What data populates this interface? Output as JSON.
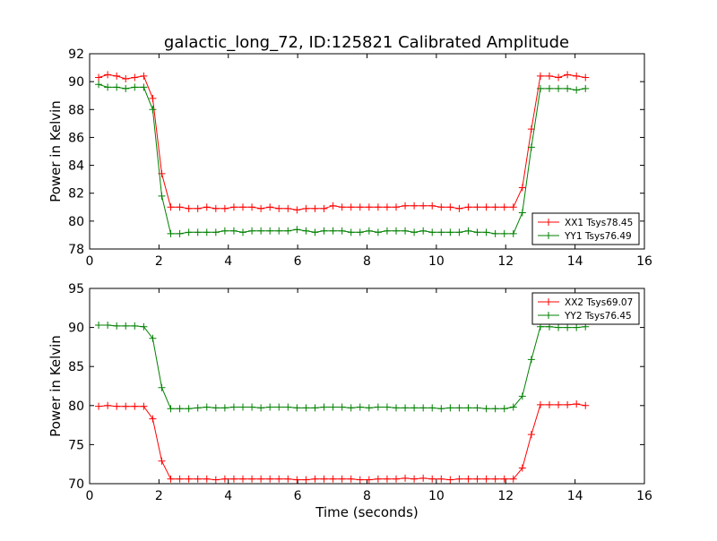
{
  "figure": {
    "title": "galactic_long_72, ID:125821 Calibrated Amplitude",
    "background": "#ffffff"
  },
  "chart_data": [
    {
      "type": "line",
      "title": "galactic_long_72, ID:125821 Calibrated Amplitude",
      "xlabel": "",
      "ylabel": "Power in Kelvin",
      "xlim": [
        0,
        16
      ],
      "ylim": [
        78,
        92
      ],
      "xticks": [
        0,
        2,
        4,
        6,
        8,
        10,
        12,
        14,
        16
      ],
      "yticks": [
        78,
        80,
        82,
        84,
        86,
        88,
        90,
        92
      ],
      "grid": false,
      "legend_position": "lower-right",
      "marker": "+",
      "x": [
        0.26,
        0.52,
        0.78,
        1.04,
        1.3,
        1.56,
        1.82,
        2.08,
        2.34,
        2.6,
        2.86,
        3.12,
        3.38,
        3.64,
        3.9,
        4.16,
        4.42,
        4.68,
        4.94,
        5.2,
        5.46,
        5.72,
        5.98,
        6.24,
        6.5,
        6.76,
        7.02,
        7.28,
        7.54,
        7.8,
        8.06,
        8.32,
        8.58,
        8.84,
        9.1,
        9.36,
        9.62,
        9.88,
        10.14,
        10.4,
        10.66,
        10.92,
        11.18,
        11.44,
        11.7,
        11.96,
        12.22,
        12.48,
        12.74,
        13.0,
        13.26,
        13.52,
        13.78,
        14.04,
        14.3
      ],
      "series": [
        {
          "name": "XX1 Tsys78.45",
          "color": "#ff0000",
          "values": [
            90.3,
            90.5,
            90.4,
            90.2,
            90.3,
            90.4,
            88.8,
            83.4,
            81.0,
            81.0,
            80.9,
            80.9,
            81.0,
            80.9,
            80.9,
            81.0,
            81.0,
            81.0,
            80.9,
            81.0,
            80.9,
            80.9,
            80.8,
            80.9,
            80.9,
            80.9,
            81.1,
            81.0,
            81.0,
            81.0,
            81.0,
            81.0,
            81.0,
            81.0,
            81.1,
            81.1,
            81.1,
            81.1,
            81.0,
            81.0,
            80.9,
            81.0,
            81.0,
            81.0,
            81.0,
            81.0,
            81.0,
            82.4,
            86.6,
            90.4,
            90.4,
            90.3,
            90.5,
            90.4,
            90.3
          ]
        },
        {
          "name": "YY1 Tsys76.49",
          "color": "#008000",
          "values": [
            89.8,
            89.6,
            89.6,
            89.5,
            89.6,
            89.6,
            88.0,
            81.8,
            79.1,
            79.1,
            79.2,
            79.2,
            79.2,
            79.2,
            79.3,
            79.3,
            79.2,
            79.3,
            79.3,
            79.3,
            79.3,
            79.3,
            79.4,
            79.3,
            79.2,
            79.3,
            79.3,
            79.3,
            79.2,
            79.2,
            79.3,
            79.2,
            79.3,
            79.3,
            79.3,
            79.2,
            79.3,
            79.2,
            79.2,
            79.2,
            79.2,
            79.3,
            79.2,
            79.2,
            79.1,
            79.1,
            79.1,
            80.6,
            85.3,
            89.5,
            89.5,
            89.5,
            89.5,
            89.4,
            89.5
          ]
        }
      ]
    },
    {
      "type": "line",
      "title": "",
      "xlabel": "Time (seconds)",
      "ylabel": "Power in Kelvin",
      "xlim": [
        0,
        16
      ],
      "ylim": [
        70,
        95
      ],
      "xticks": [
        0,
        2,
        4,
        6,
        8,
        10,
        12,
        14,
        16
      ],
      "yticks": [
        70,
        75,
        80,
        85,
        90,
        95
      ],
      "grid": false,
      "legend_position": "top-right",
      "marker": "+",
      "x": [
        0.26,
        0.52,
        0.78,
        1.04,
        1.3,
        1.56,
        1.82,
        2.08,
        2.34,
        2.6,
        2.86,
        3.12,
        3.38,
        3.64,
        3.9,
        4.16,
        4.42,
        4.68,
        4.94,
        5.2,
        5.46,
        5.72,
        5.98,
        6.24,
        6.5,
        6.76,
        7.02,
        7.28,
        7.54,
        7.8,
        8.06,
        8.32,
        8.58,
        8.84,
        9.1,
        9.36,
        9.62,
        9.88,
        10.14,
        10.4,
        10.66,
        10.92,
        11.18,
        11.44,
        11.7,
        11.96,
        12.22,
        12.48,
        12.74,
        13.0,
        13.26,
        13.52,
        13.78,
        14.04,
        14.3
      ],
      "series": [
        {
          "name": "XX2 Tsys69.07",
          "color": "#ff0000",
          "values": [
            79.9,
            80.0,
            79.9,
            79.9,
            79.9,
            79.9,
            78.3,
            72.9,
            70.6,
            70.6,
            70.6,
            70.6,
            70.6,
            70.5,
            70.6,
            70.6,
            70.6,
            70.6,
            70.6,
            70.6,
            70.6,
            70.6,
            70.5,
            70.5,
            70.6,
            70.6,
            70.6,
            70.6,
            70.6,
            70.5,
            70.5,
            70.6,
            70.6,
            70.6,
            70.7,
            70.6,
            70.7,
            70.6,
            70.6,
            70.5,
            70.6,
            70.6,
            70.6,
            70.6,
            70.6,
            70.6,
            70.6,
            72.0,
            76.3,
            80.1,
            80.1,
            80.1,
            80.1,
            80.2,
            80.0
          ]
        },
        {
          "name": "YY2 Tsys76.45",
          "color": "#008000",
          "values": [
            90.3,
            90.3,
            90.2,
            90.2,
            90.2,
            90.1,
            88.6,
            82.3,
            79.6,
            79.6,
            79.6,
            79.7,
            79.8,
            79.7,
            79.7,
            79.8,
            79.8,
            79.8,
            79.7,
            79.8,
            79.8,
            79.8,
            79.7,
            79.7,
            79.7,
            79.8,
            79.8,
            79.8,
            79.7,
            79.8,
            79.7,
            79.8,
            79.8,
            79.7,
            79.7,
            79.7,
            79.7,
            79.7,
            79.6,
            79.7,
            79.7,
            79.7,
            79.7,
            79.6,
            79.6,
            79.6,
            79.8,
            81.2,
            85.9,
            90.1,
            90.1,
            90.0,
            90.0,
            90.0,
            90.1
          ]
        }
      ]
    }
  ]
}
